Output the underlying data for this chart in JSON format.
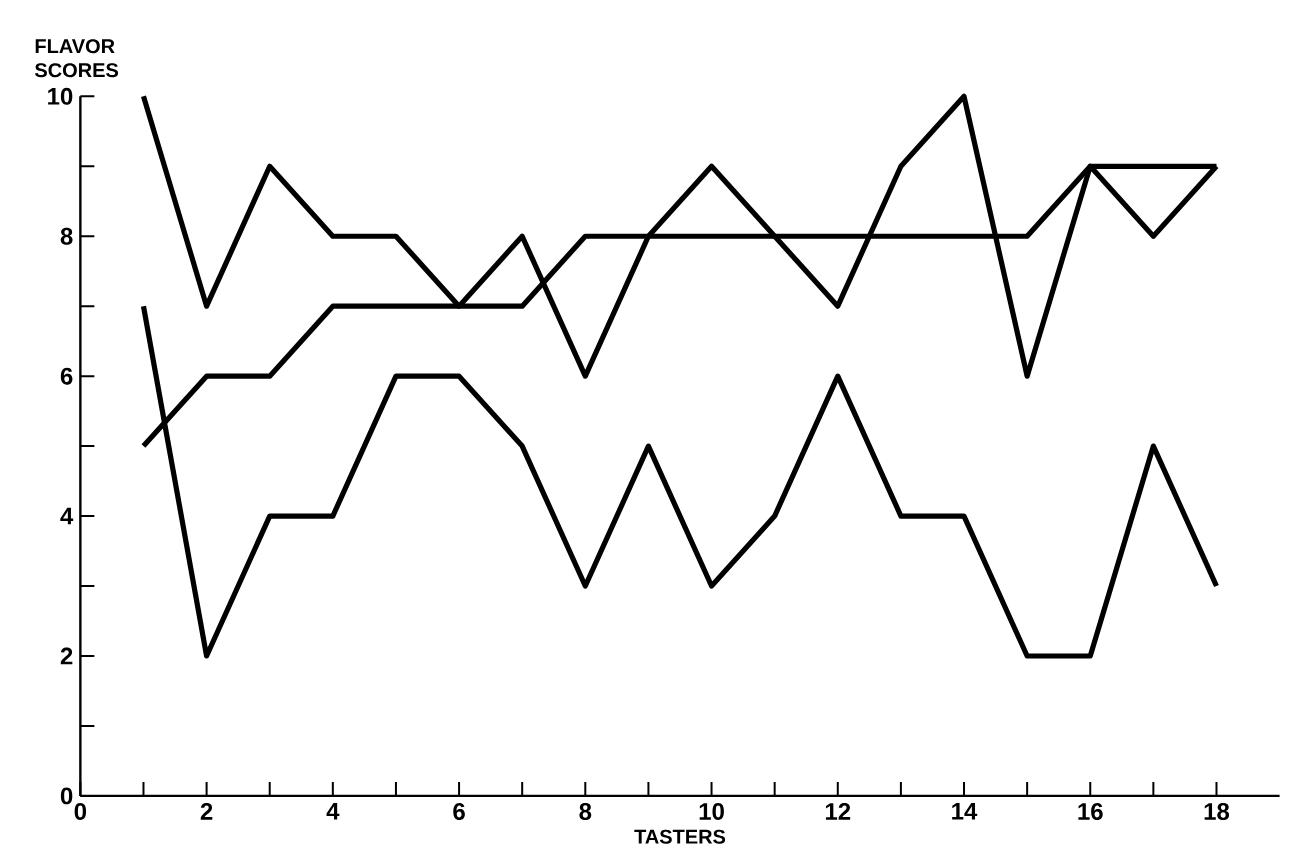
{
  "chart_data": {
    "type": "line",
    "xlabel": "TASTERS",
    "ylabel": "FLAVOR SCORES",
    "x": [
      1,
      2,
      3,
      4,
      5,
      6,
      7,
      8,
      9,
      10,
      11,
      12,
      13,
      14,
      15,
      16,
      17,
      18
    ],
    "series": [
      {
        "color": "#000000",
        "values": [
          10,
          7,
          9,
          8,
          8,
          7,
          8,
          6,
          8,
          9,
          8,
          7,
          9,
          10,
          6,
          9,
          8,
          9
        ]
      },
      {
        "color": "#000000",
        "values": [
          5,
          6,
          6,
          7,
          7,
          7,
          7,
          8,
          8,
          8,
          8,
          8,
          8,
          8,
          8,
          9,
          9,
          9
        ]
      },
      {
        "color": "#000000",
        "values": [
          7,
          2,
          4,
          4,
          6,
          6,
          5,
          3,
          5,
          3,
          4,
          6,
          4,
          4,
          2,
          2,
          5,
          3
        ]
      }
    ],
    "xlim": [
      0,
      19
    ],
    "ylim": [
      0,
      10
    ],
    "xticks": [
      0,
      {
        "value": 1,
        "label": null
      },
      2,
      {
        "value": 3,
        "label": null
      },
      4,
      {
        "value": 5,
        "label": null
      },
      6,
      {
        "value": 7,
        "label": null
      },
      8,
      {
        "value": 9,
        "label": null
      },
      10,
      {
        "value": 11,
        "label": null
      },
      12,
      {
        "value": 13,
        "label": null
      },
      14,
      {
        "value": 15,
        "label": null
      },
      16,
      {
        "value": 17,
        "label": null
      },
      18
    ],
    "yticks": [
      0,
      {
        "value": 1,
        "label": null
      },
      2,
      {
        "value": 3,
        "label": null
      },
      4,
      {
        "value": 5,
        "label": null
      },
      6,
      {
        "value": 7,
        "label": null
      },
      8,
      {
        "value": 9,
        "label": null
      },
      10
    ],
    "grid": false,
    "marker": "none",
    "line_style": "solid"
  }
}
